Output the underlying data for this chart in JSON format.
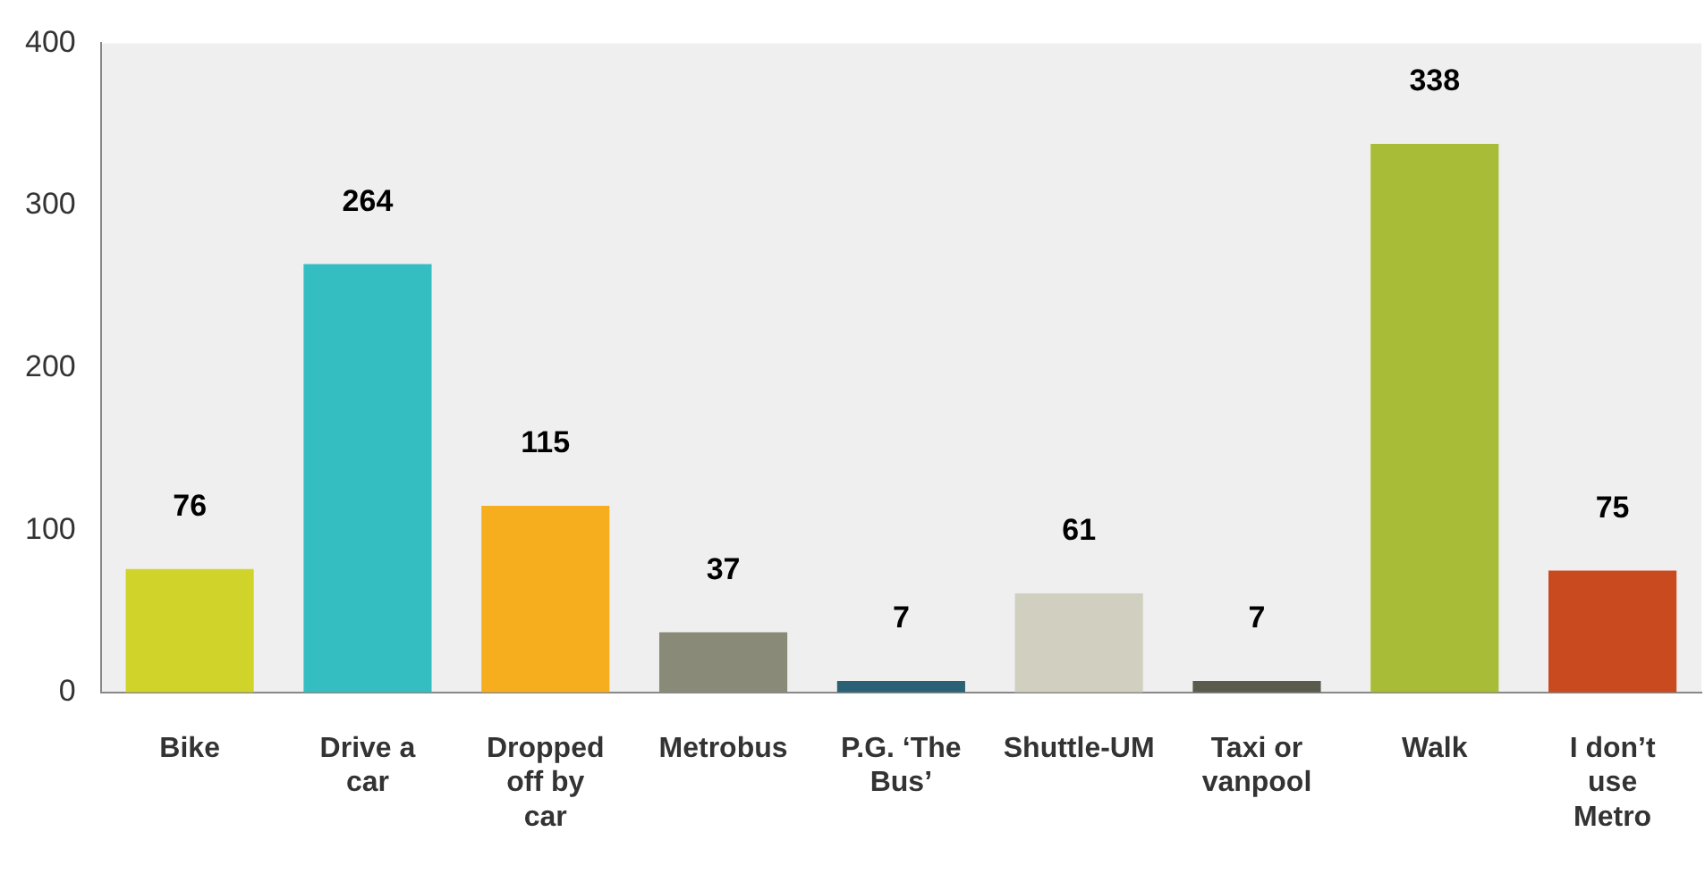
{
  "chart_data": {
    "type": "bar",
    "categories": [
      "Bike",
      "Drive a car",
      "Dropped off by car",
      "Metrobus",
      "P.G. ‘The Bus’",
      "Shuttle-UM",
      "Taxi or vanpool",
      "Walk",
      "I don’t use Metro"
    ],
    "values": [
      76,
      264,
      115,
      37,
      7,
      61,
      7,
      338,
      75
    ],
    "colors": [
      "#d0d42a",
      "#35bec1",
      "#f6ae1f",
      "#898a78",
      "#2a6175",
      "#d0cfc0",
      "#5a5b4c",
      "#a9bc38",
      "#c94a1f"
    ],
    "ylim": [
      0,
      400
    ],
    "yticks": [
      0,
      100,
      200,
      300,
      400
    ],
    "grid": false,
    "legend": false,
    "data_labels": true
  }
}
